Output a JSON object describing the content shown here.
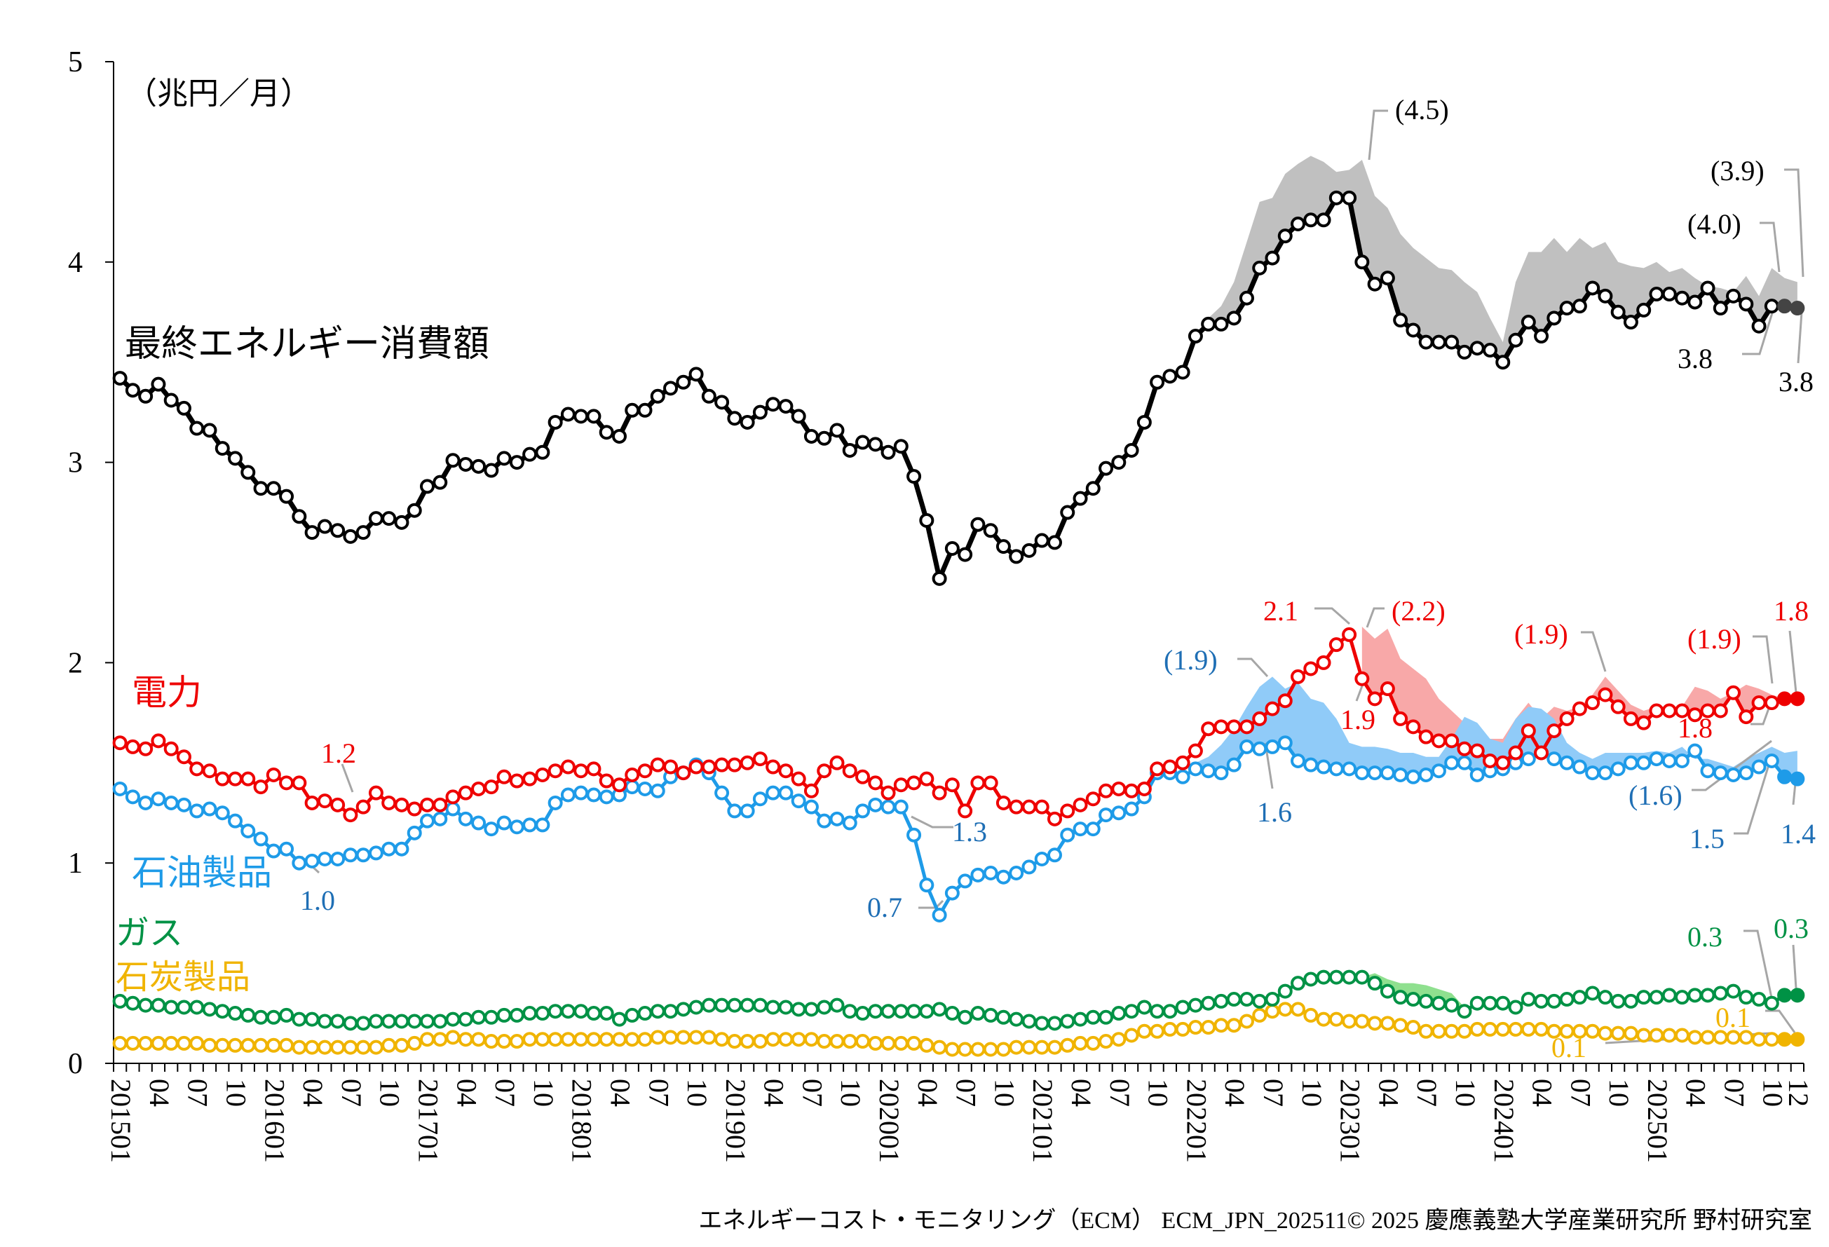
{
  "chart_data": {
    "type": "line",
    "unit_label": "（兆円／月）",
    "x_range": [
      "201501",
      "202512"
    ],
    "x_tick_labels": [
      "201501",
      "04",
      "07",
      "10",
      "201601",
      "04",
      "07",
      "10",
      "201701",
      "04",
      "07",
      "10",
      "201801",
      "04",
      "07",
      "10",
      "201901",
      "04",
      "07",
      "10",
      "202001",
      "04",
      "07",
      "10",
      "202101",
      "04",
      "07",
      "10",
      "202201",
      "04",
      "07",
      "10",
      "202301",
      "04",
      "07",
      "10",
      "202401",
      "04",
      "07",
      "10",
      "202501",
      "04",
      "07",
      "10",
      "12"
    ],
    "ylim": [
      0,
      5
    ],
    "y_ticks": [
      0,
      1,
      2,
      3,
      4,
      5
    ],
    "grid": false,
    "projected_last_points": 2,
    "series": [
      {
        "name": "最終エネルギー消費額",
        "color": "#000000",
        "band_color": "#c0c0c0",
        "values": [
          3.42,
          3.36,
          3.33,
          3.39,
          3.31,
          3.27,
          3.17,
          3.16,
          3.07,
          3.02,
          2.95,
          2.87,
          2.87,
          2.83,
          2.73,
          2.65,
          2.68,
          2.66,
          2.63,
          2.65,
          2.72,
          2.72,
          2.7,
          2.76,
          2.88,
          2.9,
          3.01,
          2.99,
          2.98,
          2.96,
          3.02,
          3.0,
          3.04,
          3.05,
          3.2,
          3.24,
          3.23,
          3.23,
          3.15,
          3.13,
          3.26,
          3.26,
          3.33,
          3.37,
          3.4,
          3.44,
          3.33,
          3.3,
          3.22,
          3.2,
          3.25,
          3.29,
          3.28,
          3.23,
          3.13,
          3.12,
          3.16,
          3.06,
          3.1,
          3.09,
          3.05,
          3.08,
          2.93,
          2.71,
          2.42,
          2.57,
          2.54,
          2.69,
          2.66,
          2.58,
          2.53,
          2.56,
          2.61,
          2.6,
          2.75,
          2.82,
          2.87,
          2.97,
          3.0,
          3.06,
          3.2,
          3.4,
          3.43,
          3.45,
          3.63,
          3.69,
          3.69,
          3.72,
          3.82,
          3.97,
          4.02,
          4.13,
          4.19,
          4.21,
          4.21,
          4.32,
          4.32,
          4.0,
          3.89,
          3.92,
          3.71,
          3.66,
          3.6,
          3.6,
          3.6,
          3.55,
          3.57,
          3.56,
          3.5,
          3.61,
          3.7,
          3.63,
          3.72,
          3.77,
          3.78,
          3.87,
          3.83,
          3.75,
          3.7,
          3.76,
          3.84,
          3.84,
          3.82,
          3.8,
          3.87,
          3.77,
          3.83,
          3.79,
          3.68,
          3.78,
          3.78,
          3.77
        ],
        "band": {
          "start": "202202",
          "upper": [
            3.72,
            3.78,
            3.9,
            4.1,
            4.3,
            4.32,
            4.44,
            4.49,
            4.53,
            4.5,
            4.45,
            4.46,
            4.51,
            4.33,
            4.27,
            4.14,
            4.07,
            4.02,
            3.97,
            3.96,
            3.9,
            3.85,
            3.72,
            3.6,
            3.9,
            4.05,
            4.05,
            4.12,
            4.05,
            4.12,
            4.07,
            4.1,
            4.0,
            3.98,
            3.97,
            4.0,
            3.95,
            3.97,
            3.92,
            3.88,
            3.87,
            3.85,
            3.93,
            3.83,
            3.97,
            3.92,
            3.9
          ]
        }
      },
      {
        "name": "電力",
        "color": "#ee0000",
        "band_color": "#f8a8a8",
        "values": [
          1.6,
          1.58,
          1.57,
          1.61,
          1.57,
          1.53,
          1.47,
          1.46,
          1.42,
          1.42,
          1.42,
          1.38,
          1.44,
          1.4,
          1.4,
          1.3,
          1.31,
          1.29,
          1.24,
          1.28,
          1.35,
          1.3,
          1.29,
          1.27,
          1.29,
          1.29,
          1.33,
          1.35,
          1.37,
          1.38,
          1.43,
          1.41,
          1.42,
          1.44,
          1.46,
          1.48,
          1.46,
          1.47,
          1.41,
          1.39,
          1.44,
          1.46,
          1.49,
          1.48,
          1.45,
          1.48,
          1.48,
          1.49,
          1.49,
          1.5,
          1.52,
          1.48,
          1.46,
          1.42,
          1.36,
          1.46,
          1.5,
          1.46,
          1.43,
          1.4,
          1.35,
          1.39,
          1.4,
          1.42,
          1.35,
          1.39,
          1.26,
          1.4,
          1.4,
          1.3,
          1.28,
          1.28,
          1.28,
          1.22,
          1.26,
          1.29,
          1.32,
          1.36,
          1.37,
          1.36,
          1.37,
          1.47,
          1.48,
          1.5,
          1.56,
          1.67,
          1.68,
          1.68,
          1.68,
          1.72,
          1.77,
          1.81,
          1.93,
          1.97,
          2.0,
          2.09,
          2.14,
          1.92,
          1.82,
          1.87,
          1.72,
          1.68,
          1.63,
          1.61,
          1.61,
          1.57,
          1.56,
          1.51,
          1.5,
          1.55,
          1.66,
          1.55,
          1.66,
          1.72,
          1.77,
          1.8,
          1.84,
          1.78,
          1.72,
          1.7,
          1.76,
          1.76,
          1.76,
          1.74,
          1.76,
          1.76,
          1.85,
          1.73,
          1.8,
          1.8,
          1.82,
          1.82
        ],
        "band": {
          "start": "202302",
          "upper": [
            2.18,
            2.12,
            2.17,
            2.02,
            1.97,
            1.92,
            1.82,
            1.76,
            1.7,
            1.65,
            1.62,
            1.62,
            1.72,
            1.8,
            1.72,
            1.78,
            1.76,
            1.78,
            1.84,
            1.93,
            1.86,
            1.79,
            1.76,
            1.78,
            1.78,
            1.78,
            1.88,
            1.86,
            1.82,
            1.85,
            1.89,
            1.87,
            1.84,
            1.82,
            1.82
          ]
        }
      },
      {
        "name": "石油製品",
        "color": "#1e9be8",
        "band_color": "#90cbf8",
        "values": [
          1.37,
          1.33,
          1.3,
          1.32,
          1.3,
          1.29,
          1.26,
          1.27,
          1.25,
          1.21,
          1.16,
          1.12,
          1.06,
          1.07,
          1.0,
          1.01,
          1.02,
          1.02,
          1.04,
          1.04,
          1.05,
          1.07,
          1.07,
          1.15,
          1.21,
          1.22,
          1.27,
          1.22,
          1.2,
          1.17,
          1.2,
          1.18,
          1.19,
          1.19,
          1.3,
          1.34,
          1.35,
          1.34,
          1.33,
          1.34,
          1.38,
          1.37,
          1.36,
          1.43,
          1.45,
          1.49,
          1.45,
          1.35,
          1.26,
          1.26,
          1.32,
          1.35,
          1.35,
          1.31,
          1.28,
          1.21,
          1.22,
          1.2,
          1.26,
          1.29,
          1.28,
          1.28,
          1.14,
          0.89,
          0.74,
          0.85,
          0.91,
          0.94,
          0.95,
          0.93,
          0.95,
          0.98,
          1.02,
          1.04,
          1.14,
          1.17,
          1.17,
          1.24,
          1.25,
          1.27,
          1.33,
          1.45,
          1.45,
          1.43,
          1.47,
          1.46,
          1.45,
          1.49,
          1.58,
          1.57,
          1.58,
          1.6,
          1.51,
          1.49,
          1.48,
          1.47,
          1.47,
          1.45,
          1.45,
          1.45,
          1.44,
          1.43,
          1.44,
          1.46,
          1.5,
          1.5,
          1.44,
          1.46,
          1.47,
          1.5,
          1.52,
          1.55,
          1.52,
          1.5,
          1.48,
          1.45,
          1.45,
          1.47,
          1.5,
          1.5,
          1.52,
          1.51,
          1.51,
          1.56,
          1.46,
          1.45,
          1.44,
          1.45,
          1.48,
          1.51,
          1.43,
          1.42
        ],
        "band": {
          "start": "202201",
          "upper": [
            1.5,
            1.53,
            1.59,
            1.67,
            1.78,
            1.88,
            1.93,
            1.87,
            1.9,
            1.82,
            1.8,
            1.72,
            1.6,
            1.58,
            1.58,
            1.57,
            1.55,
            1.55,
            1.53,
            1.53,
            1.62,
            1.73,
            1.7,
            1.62,
            1.6,
            1.72,
            1.78,
            1.77,
            1.72,
            1.6,
            1.55,
            1.52,
            1.55,
            1.55,
            1.55,
            1.55,
            1.56,
            1.55,
            1.58,
            1.52,
            1.52,
            1.5,
            1.48,
            1.52,
            1.55,
            1.58,
            1.55,
            1.56
          ]
        }
      },
      {
        "name": "ガス",
        "color": "#009245",
        "band_color": "#8fe08f",
        "values": [
          0.31,
          0.3,
          0.29,
          0.29,
          0.28,
          0.28,
          0.28,
          0.27,
          0.26,
          0.25,
          0.24,
          0.23,
          0.23,
          0.24,
          0.22,
          0.22,
          0.21,
          0.21,
          0.2,
          0.2,
          0.21,
          0.21,
          0.21,
          0.21,
          0.21,
          0.21,
          0.22,
          0.22,
          0.23,
          0.23,
          0.24,
          0.24,
          0.25,
          0.25,
          0.26,
          0.26,
          0.26,
          0.25,
          0.25,
          0.22,
          0.24,
          0.25,
          0.26,
          0.26,
          0.27,
          0.28,
          0.29,
          0.29,
          0.29,
          0.29,
          0.29,
          0.28,
          0.28,
          0.27,
          0.27,
          0.28,
          0.29,
          0.26,
          0.25,
          0.26,
          0.26,
          0.26,
          0.26,
          0.26,
          0.27,
          0.25,
          0.23,
          0.25,
          0.24,
          0.23,
          0.22,
          0.21,
          0.2,
          0.2,
          0.21,
          0.22,
          0.23,
          0.23,
          0.25,
          0.26,
          0.28,
          0.26,
          0.26,
          0.28,
          0.29,
          0.3,
          0.31,
          0.32,
          0.32,
          0.31,
          0.32,
          0.36,
          0.4,
          0.42,
          0.43,
          0.43,
          0.43,
          0.43,
          0.4,
          0.36,
          0.33,
          0.32,
          0.31,
          0.3,
          0.29,
          0.26,
          0.3,
          0.3,
          0.3,
          0.28,
          0.32,
          0.31,
          0.31,
          0.32,
          0.33,
          0.35,
          0.33,
          0.31,
          0.31,
          0.33,
          0.33,
          0.34,
          0.33,
          0.34,
          0.34,
          0.35,
          0.36,
          0.33,
          0.32,
          0.3,
          0.34,
          0.34
        ],
        "band": {
          "start": "202302",
          "upper": [
            0.43,
            0.45,
            0.42,
            0.4,
            0.4,
            0.39,
            0.37,
            0.35,
            0.28
          ]
        }
      },
      {
        "name": "石炭製品",
        "color": "#f0b400",
        "values": [
          0.1,
          0.1,
          0.1,
          0.1,
          0.1,
          0.1,
          0.1,
          0.09,
          0.09,
          0.09,
          0.09,
          0.09,
          0.09,
          0.09,
          0.08,
          0.08,
          0.08,
          0.08,
          0.08,
          0.08,
          0.08,
          0.09,
          0.09,
          0.1,
          0.12,
          0.12,
          0.13,
          0.12,
          0.12,
          0.11,
          0.11,
          0.11,
          0.12,
          0.12,
          0.12,
          0.12,
          0.12,
          0.12,
          0.12,
          0.12,
          0.12,
          0.12,
          0.13,
          0.13,
          0.13,
          0.13,
          0.13,
          0.12,
          0.11,
          0.11,
          0.11,
          0.12,
          0.12,
          0.12,
          0.12,
          0.11,
          0.11,
          0.11,
          0.11,
          0.1,
          0.1,
          0.1,
          0.1,
          0.09,
          0.08,
          0.07,
          0.07,
          0.07,
          0.07,
          0.07,
          0.08,
          0.08,
          0.08,
          0.08,
          0.09,
          0.1,
          0.1,
          0.11,
          0.12,
          0.14,
          0.16,
          0.16,
          0.17,
          0.17,
          0.18,
          0.18,
          0.19,
          0.19,
          0.21,
          0.24,
          0.26,
          0.27,
          0.27,
          0.24,
          0.22,
          0.22,
          0.21,
          0.21,
          0.2,
          0.2,
          0.19,
          0.18,
          0.16,
          0.16,
          0.16,
          0.16,
          0.17,
          0.17,
          0.17,
          0.17,
          0.17,
          0.17,
          0.16,
          0.16,
          0.16,
          0.16,
          0.15,
          0.15,
          0.15,
          0.14,
          0.14,
          0.14,
          0.14,
          0.13,
          0.13,
          0.13,
          0.13,
          0.13,
          0.12,
          0.12,
          0.12,
          0.12
        ]
      }
    ],
    "annotations": {
      "total_peak_band": "(4.5)",
      "total_band_latest_a": "(3.9)",
      "total_band_latest_b": "(4.0)",
      "total_actual": "3.8",
      "total_projected": "3.8",
      "elec_2016": "1.2",
      "elec_2020": "1.3",
      "elec_peak": "2.1",
      "elec_peak_band": "(2.2)",
      "elec_2023": "1.9",
      "elec_band_2024": "(1.9)",
      "elec_band_latest": "(1.9)",
      "elec_projected": "1.8",
      "elec_actual": "1.8",
      "oil_2016": "1.0",
      "oil_2020": "0.7",
      "oil_band_2022": "(1.9)",
      "oil_2022": "1.6",
      "oil_band_latest": "(1.6)",
      "oil_actual": "1.5",
      "oil_projected": "1.4",
      "gas_actual": "0.3",
      "gas_projected": "0.3",
      "coal_projected": "0.1",
      "coal_actual": "0.1"
    },
    "footer": "エネルギーコスト・モニタリング（ECM） ECM_JPN_202511© 2025 慶應義塾大学産業研究所 野村研究室"
  }
}
